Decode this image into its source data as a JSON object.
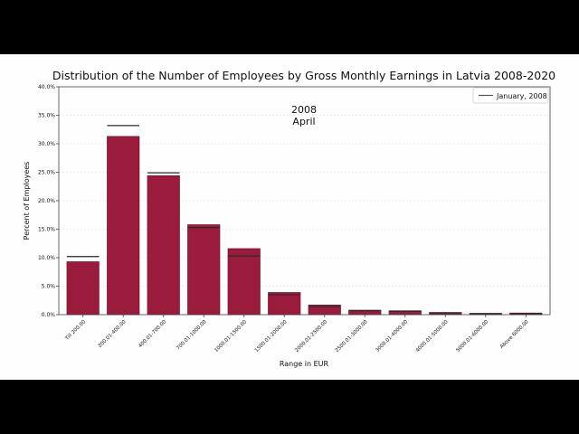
{
  "chart_data": {
    "type": "bar",
    "title": "Distribution of the Number of Employees by Gross Monthly Earnings in Latvia 2008-2020",
    "xlabel": "Range in EUR",
    "ylabel": "Percent of Employees",
    "ylim": [
      0,
      40
    ],
    "yticks": [
      "0.0%",
      "5.0%",
      "10.0%",
      "15.0%",
      "20.0%",
      "25.0%",
      "30.0%",
      "35.0%",
      "40.0%"
    ],
    "grid": true,
    "legend_position": "top-right",
    "annotation_year": "2008",
    "annotation_month": "April",
    "categories": [
      "Till 200.00",
      "200.01-400.00",
      "400.01-700.00",
      "700.01-1000.00",
      "1000.01-1500.00",
      "1500.01-2000.00",
      "2000.01-2500.00",
      "2500.01-3000.00",
      "3000.01-4000.00",
      "4000.01-5000.00",
      "5000.01-6000.00",
      "Above 6000.00"
    ],
    "series": [
      {
        "name": "April, 2008",
        "style": "bar",
        "color": "#9b1b3c",
        "values": [
          9.3,
          31.3,
          24.4,
          15.8,
          11.6,
          3.9,
          1.7,
          0.8,
          0.7,
          0.4,
          0.2,
          0.3
        ]
      },
      {
        "name": "January, 2008",
        "style": "line-marker",
        "color": "#555555",
        "values": [
          10.2,
          33.2,
          24.9,
          15.3,
          10.3,
          3.5,
          1.4,
          0.7,
          0.6,
          0.3,
          0.2,
          0.2
        ]
      }
    ],
    "legend": [
      "January, 2008"
    ]
  }
}
